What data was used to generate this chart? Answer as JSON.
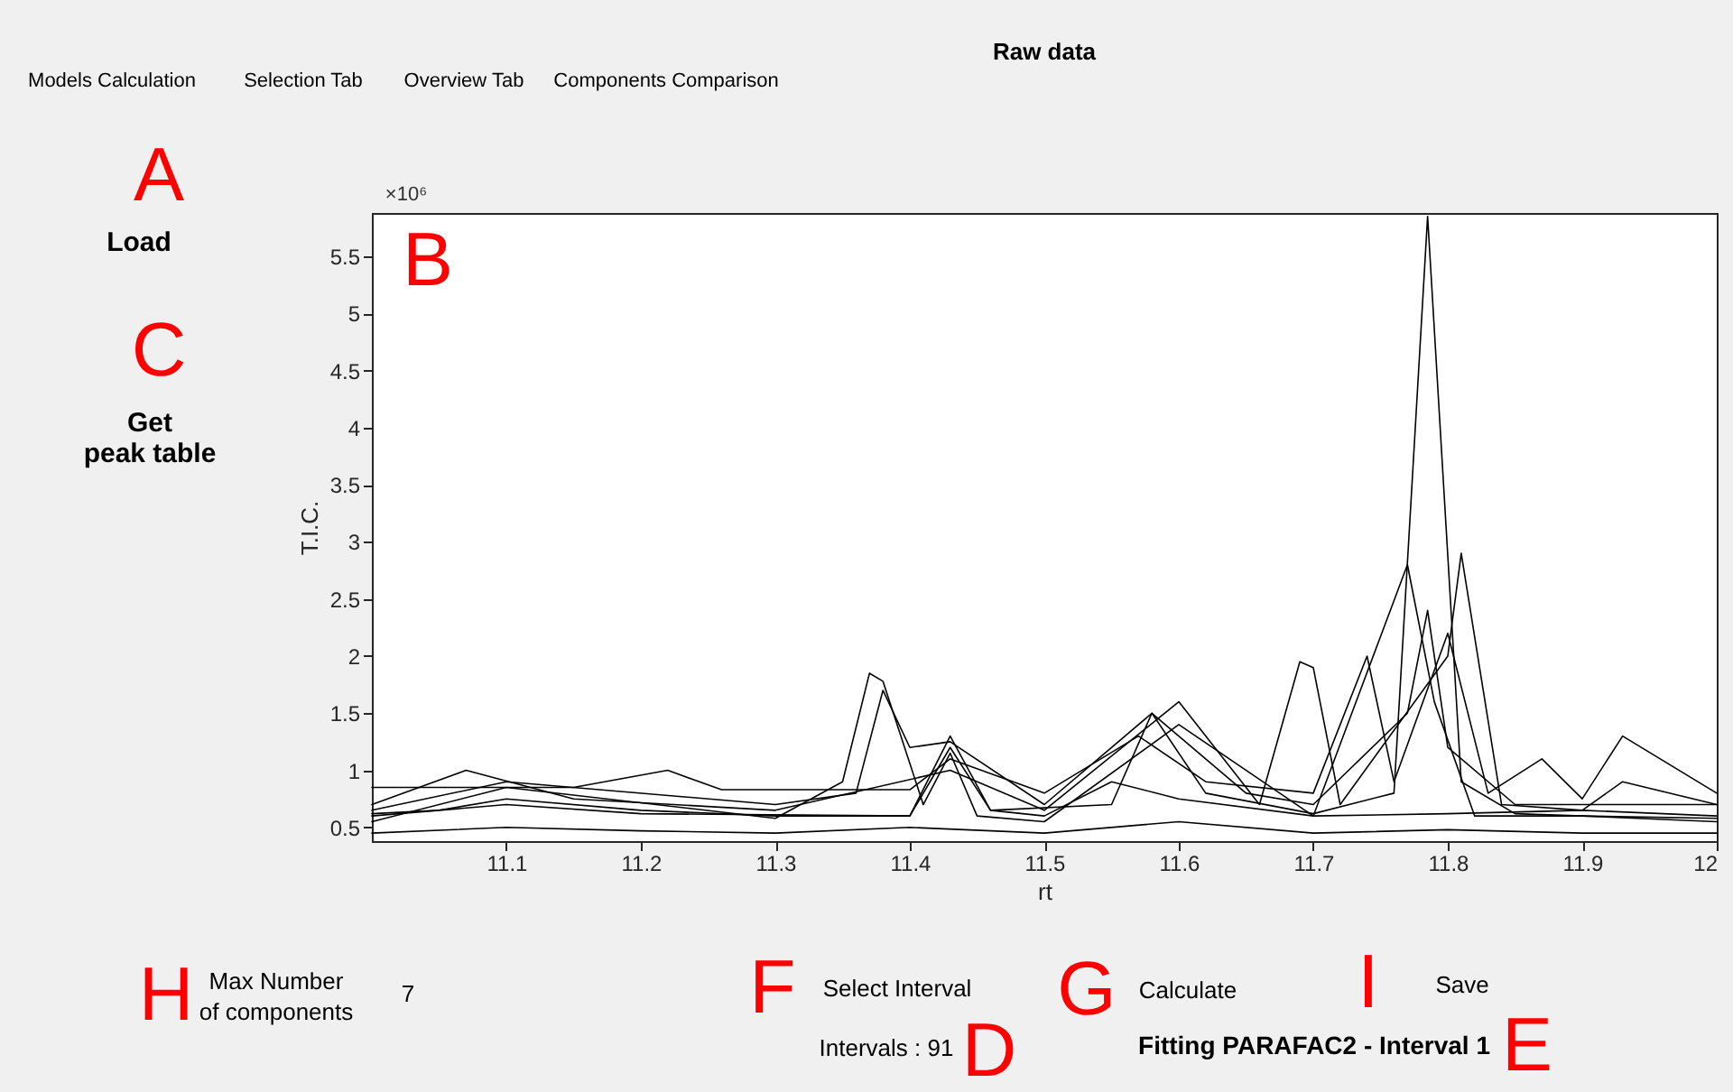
{
  "chart_data": {
    "type": "line",
    "title": "Raw data",
    "xlabel": "rt",
    "ylabel": "T.I.C.",
    "xlim": [
      11.0,
      12.0
    ],
    "ylim": [
      0.38,
      5.88
    ],
    "xticks": [
      11.1,
      11.2,
      11.3,
      11.4,
      11.5,
      11.6,
      11.7,
      11.8,
      11.9,
      12
    ],
    "yticks": [
      0.5,
      1,
      1.5,
      2,
      2.5,
      3,
      3.5,
      4,
      4.5,
      5,
      5.5
    ],
    "series": [
      {
        "color": "#000000",
        "x": [
          11.0,
          11.05,
          11.1,
          11.2,
          11.3,
          11.4,
          11.43,
          11.46,
          11.5,
          11.55,
          11.6,
          11.7,
          11.8,
          11.9,
          12.0
        ],
        "values": [
          0.62,
          0.65,
          0.75,
          0.65,
          0.6,
          0.6,
          1.2,
          0.65,
          0.6,
          0.9,
          0.75,
          0.6,
          0.62,
          0.65,
          0.6
        ]
      },
      {
        "color": "#000000",
        "x": [
          11.0,
          11.1,
          11.2,
          11.4,
          11.43,
          11.46,
          11.55,
          11.58,
          11.62,
          11.7,
          11.76,
          11.785,
          11.81,
          11.85,
          11.9,
          12.0
        ],
        "values": [
          0.6,
          0.7,
          0.62,
          0.6,
          1.3,
          0.65,
          0.7,
          1.5,
          0.8,
          0.62,
          0.8,
          5.85,
          0.9,
          0.62,
          0.6,
          0.58
        ]
      },
      {
        "color": "#000000",
        "x": [
          11.0,
          11.1,
          11.3,
          11.35,
          11.37,
          11.38,
          11.41,
          11.43,
          11.45,
          11.5,
          11.6,
          11.7,
          11.77,
          11.79,
          11.82,
          11.9,
          12.0
        ],
        "values": [
          0.55,
          0.85,
          0.58,
          0.9,
          1.85,
          1.78,
          0.7,
          1.15,
          0.6,
          0.55,
          1.4,
          0.6,
          2.8,
          1.6,
          0.6,
          0.6,
          0.55
        ]
      },
      {
        "color": "#000000",
        "x": [
          11.0,
          11.07,
          11.15,
          11.3,
          11.43,
          11.5,
          11.6,
          11.66,
          11.69,
          11.7,
          11.72,
          11.8,
          11.81,
          11.84,
          11.9,
          11.93,
          12.0
        ],
        "values": [
          0.7,
          1.0,
          0.75,
          0.65,
          1.0,
          0.65,
          1.6,
          0.7,
          1.95,
          1.9,
          0.7,
          2.0,
          2.9,
          0.7,
          0.65,
          0.9,
          0.7
        ]
      },
      {
        "color": "#000000",
        "x": [
          11.0,
          11.15,
          11.22,
          11.26,
          11.4,
          11.43,
          11.5,
          11.57,
          11.62,
          11.7,
          11.74,
          11.76,
          11.8,
          11.83,
          11.87,
          11.9,
          11.93,
          12.0
        ],
        "values": [
          0.85,
          0.85,
          1.0,
          0.83,
          0.83,
          1.1,
          0.8,
          1.3,
          0.9,
          0.8,
          2.0,
          0.9,
          2.2,
          0.8,
          1.1,
          0.75,
          1.3,
          0.8
        ]
      },
      {
        "color": "#000000",
        "x": [
          11.0,
          11.1,
          11.2,
          11.3,
          11.4,
          11.5,
          11.6,
          11.7,
          11.8,
          11.9,
          12.0
        ],
        "values": [
          0.45,
          0.5,
          0.47,
          0.45,
          0.5,
          0.45,
          0.55,
          0.45,
          0.48,
          0.45,
          0.45
        ]
      },
      {
        "color": "#000000",
        "x": [
          11.0,
          11.1,
          11.3,
          11.36,
          11.38,
          11.4,
          11.43,
          11.5,
          11.58,
          11.65,
          11.7,
          11.77,
          11.785,
          11.8,
          11.85,
          12.0
        ],
        "values": [
          0.65,
          0.9,
          0.7,
          0.8,
          1.7,
          1.2,
          1.25,
          0.7,
          1.5,
          0.8,
          0.7,
          1.5,
          2.4,
          1.2,
          0.7,
          0.7
        ]
      }
    ],
    "annotations": [
      "Models Calculation",
      "Selection Tab",
      "Overview Tab",
      "Components Comparison",
      "A",
      "Load",
      "C",
      "Get peak table",
      "B",
      "H",
      "Max Number of components",
      "7",
      "F",
      "Select Interval",
      "Intervals : 91",
      "D",
      "G",
      "Calculate",
      "I",
      "Save",
      "Fitting PARAFAC2 - Interval 1",
      "E",
      "×10⁶"
    ]
  }
}
